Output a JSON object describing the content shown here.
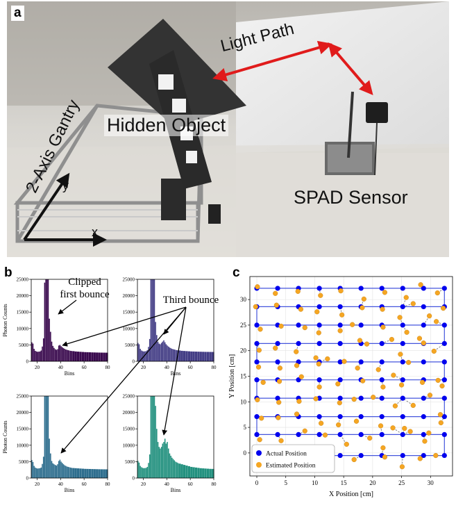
{
  "figure": {
    "panel_a": {
      "letter": "a",
      "labels": {
        "light_path": "Light Path",
        "gantry": "2-Axis Gantry",
        "hidden_object": "Hidden Object",
        "spad_sensor": "SPAD Sensor",
        "axis_x": "x",
        "axis_y": "y"
      }
    },
    "panel_b": {
      "letter": "b",
      "annotations": {
        "clipped_line1": "Clipped",
        "clipped_line2": "first bounce",
        "third_bounce": "Third bounce"
      },
      "colors": [
        "#3a0a4e",
        "#433d85",
        "#2e6e8e",
        "#23917f"
      ]
    },
    "panel_c": {
      "letter": "c",
      "legend": {
        "actual": "Actual Position",
        "estimated": "Estimated Position"
      },
      "colors": {
        "actual": "#0000ee",
        "estimated": "#f5a623",
        "path": "#4455dd"
      }
    }
  },
  "chart_data": [
    {
      "type": "bar",
      "panel": "b",
      "subplot": 1,
      "xlabel": "Bins",
      "ylabel": "Photon Counts",
      "xlim": [
        15,
        80
      ],
      "ylim": [
        0,
        25000
      ],
      "xticks": [
        20,
        40,
        60,
        80
      ],
      "yticks": [
        0,
        5000,
        10000,
        15000,
        20000,
        25000
      ],
      "bins": [
        15,
        16,
        17,
        18,
        19,
        20,
        21,
        22,
        23,
        24,
        25,
        26,
        27,
        28,
        29,
        30,
        31,
        32,
        33,
        34,
        35,
        36,
        37,
        38,
        39,
        40,
        41,
        42,
        43,
        44,
        45,
        46,
        47,
        48,
        49,
        50,
        52,
        54,
        56,
        58,
        60,
        62,
        64,
        66,
        68,
        70,
        72,
        74,
        76,
        78,
        80
      ],
      "values": [
        5800,
        5400,
        3800,
        3200,
        3000,
        2900,
        2950,
        3000,
        3300,
        4500,
        7000,
        24000,
        25000,
        25000,
        25000,
        13000,
        9000,
        6000,
        4700,
        4100,
        3700,
        3500,
        3700,
        4800,
        5000,
        4600,
        4300,
        4000,
        3800,
        3600,
        3500,
        3400,
        3300,
        3200,
        3150,
        3100,
        3000,
        2950,
        2900,
        2850,
        2800,
        2780,
        2750,
        2720,
        2700,
        2680,
        2660,
        2650,
        2640,
        2630,
        2620
      ]
    },
    {
      "type": "bar",
      "panel": "b",
      "subplot": 2,
      "xlabel": "Bins",
      "ylabel": "",
      "xlim": [
        15,
        80
      ],
      "ylim": [
        0,
        25000
      ],
      "xticks": [
        20,
        40,
        60,
        80
      ],
      "yticks": [
        0,
        5000,
        10000,
        15000,
        20000,
        25000
      ],
      "bins": [
        15,
        16,
        17,
        18,
        19,
        20,
        21,
        22,
        23,
        24,
        25,
        26,
        27,
        28,
        29,
        30,
        31,
        32,
        33,
        34,
        35,
        36,
        37,
        38,
        39,
        40,
        41,
        42,
        43,
        44,
        45,
        46,
        47,
        48,
        49,
        50,
        52,
        54,
        56,
        58,
        60,
        62,
        64,
        66,
        68,
        70,
        72,
        74,
        76,
        78,
        80
      ],
      "values": [
        5600,
        5200,
        3800,
        3300,
        3100,
        3000,
        3050,
        3100,
        3400,
        4400,
        6800,
        25000,
        25000,
        25000,
        25000,
        12000,
        8000,
        6000,
        5400,
        5200,
        5600,
        6000,
        6400,
        5800,
        5200,
        4800,
        4500,
        4200,
        4000,
        3800,
        3700,
        3600,
        3500,
        3400,
        3350,
        3300,
        3200,
        3150,
        3100,
        3050,
        3000,
        2980,
        2960,
        2940,
        2920,
        2900,
        2880,
        2870,
        2860,
        2850,
        2840
      ]
    },
    {
      "type": "bar",
      "panel": "b",
      "subplot": 3,
      "xlabel": "Bins",
      "ylabel": "Photon Counts",
      "xlim": [
        15,
        80
      ],
      "ylim": [
        0,
        25000
      ],
      "xticks": [
        20,
        40,
        60,
        80
      ],
      "yticks": [
        0,
        5000,
        10000,
        15000,
        20000,
        25000
      ],
      "bins": [
        15,
        16,
        17,
        18,
        19,
        20,
        21,
        22,
        23,
        24,
        25,
        26,
        27,
        28,
        29,
        30,
        31,
        32,
        33,
        34,
        35,
        36,
        37,
        38,
        39,
        40,
        41,
        42,
        43,
        44,
        45,
        46,
        47,
        48,
        49,
        50,
        52,
        54,
        56,
        58,
        60,
        62,
        64,
        66,
        68,
        70,
        72,
        74,
        76,
        78,
        80
      ],
      "values": [
        5500,
        4900,
        3700,
        3200,
        3000,
        2900,
        2950,
        3000,
        3200,
        4300,
        6500,
        25000,
        25000,
        25000,
        25000,
        12000,
        7500,
        5200,
        4500,
        4200,
        4000,
        3800,
        4200,
        5200,
        5600,
        5000,
        4600,
        4200,
        3900,
        3700,
        3500,
        3400,
        3300,
        3200,
        3100,
        3050,
        3000,
        2950,
        2900,
        2850,
        2800,
        2780,
        2760,
        2740,
        2720,
        2700,
        2680,
        2670,
        2660,
        2650,
        2640
      ]
    },
    {
      "type": "bar",
      "panel": "b",
      "subplot": 4,
      "xlabel": "Bins",
      "ylabel": "",
      "xlim": [
        15,
        80
      ],
      "ylim": [
        0,
        25000
      ],
      "xticks": [
        20,
        40,
        60,
        80
      ],
      "yticks": [
        0,
        5000,
        10000,
        15000,
        20000,
        25000
      ],
      "bins": [
        15,
        16,
        17,
        18,
        19,
        20,
        21,
        22,
        23,
        24,
        25,
        26,
        27,
        28,
        29,
        30,
        31,
        32,
        33,
        34,
        35,
        36,
        37,
        38,
        39,
        40,
        41,
        42,
        43,
        44,
        45,
        46,
        47,
        48,
        49,
        50,
        52,
        54,
        56,
        58,
        60,
        62,
        64,
        66,
        68,
        70,
        72,
        74,
        76,
        78,
        80
      ],
      "values": [
        5200,
        4700,
        3700,
        3300,
        3100,
        3000,
        3050,
        3100,
        3400,
        4600,
        7200,
        25000,
        25000,
        25000,
        25000,
        22000,
        15000,
        11000,
        9500,
        9000,
        9500,
        10500,
        11000,
        12000,
        10500,
        11000,
        9000,
        7500,
        6800,
        6200,
        5800,
        5400,
        5000,
        4800,
        4600,
        4400,
        4200,
        4000,
        3800,
        3600,
        3400,
        3300,
        3200,
        3100,
        3000,
        2950,
        2900,
        2850,
        2800,
        2780,
        2760
      ]
    },
    {
      "type": "scatter",
      "panel": "c",
      "xlabel": "X Position [cm]",
      "ylabel": "Y Position [cm]",
      "xlim": [
        -1.2,
        33.8
      ],
      "ylim": [
        -4.5,
        34.5
      ],
      "xticks": [
        0,
        5,
        10,
        15,
        20,
        25,
        30
      ],
      "yticks": [
        0,
        5,
        10,
        15,
        20,
        25,
        30
      ],
      "grid": true,
      "legend_position": "bottom-left",
      "actual": {
        "x": [
          0,
          3.6,
          7.2,
          10.8,
          14.4,
          18,
          21.6,
          25.2,
          28.8,
          32.4
        ],
        "y": [
          -0.5,
          3.6,
          7.1,
          10.7,
          14.3,
          17.8,
          21.4,
          25,
          28.6,
          32.2
        ]
      },
      "estimated": {
        "x": [
          6.8,
          10.3,
          12.4,
          16.8,
          22.1,
          25.1,
          28.2,
          30.9,
          0.5,
          4.2,
          8.3,
          11.8,
          15.5,
          19.5,
          21.8,
          25.5,
          29.0,
          31.8,
          0.8,
          3.7,
          6.9,
          11.1,
          14.1,
          17.2,
          21.4,
          23.5,
          26.5,
          29.7,
          31.7,
          0.1,
          3.8,
          7.3,
          10.2,
          14.3,
          16.8,
          20.1,
          23.9,
          27.0,
          29.9,
          32.0,
          1.1,
          3.9,
          7.7,
          10.8,
          14.0,
          18.3,
          21.8,
          25.0,
          28.6,
          31.3,
          0.3,
          4.0,
          6.9,
          10.7,
          15.1,
          17.4,
          21.0,
          23.6,
          26.2,
          30.6,
          0.4,
          3.2,
          6.8,
          10.2,
          12.2,
          17.8,
          19.0,
          23.3,
          24.8,
          28.8,
          0.6,
          4.2,
          8.3,
          10.7,
          14.4,
          16.5,
          21.8,
          25.9,
          28.1,
          31.0,
          -0.2,
          3.4,
          7.6,
          10.4,
          14.7,
          18.2,
          21.7,
          24.7,
          27.0,
          29.8,
          32.2,
          0.1,
          3.2,
          7.1,
          11.0,
          14.5,
          18.5,
          22.1,
          25.8,
          28.3,
          31.2
        ],
        "y": [
          -0.8,
          -0.7,
          0.6,
          -1.3,
          -0.8,
          -2.7,
          -1.1,
          -0.5,
          2.6,
          2.4,
          4.3,
          3.5,
          1.7,
          2.9,
          1.0,
          4.8,
          2.3,
          5.9,
          6.8,
          6.9,
          7.6,
          5.8,
          5.5,
          6.2,
          5.3,
          4.9,
          4.2,
          3.9,
          7.5,
          10.4,
          9.9,
          10.1,
          10.6,
          9.8,
          10.5,
          10.9,
          9.2,
          9.3,
          11.3,
          13.1,
          13.8,
          14.0,
          14.9,
          12.9,
          13.5,
          14.1,
          12.9,
          13.3,
          13.8,
          14.2,
          16.8,
          16.6,
          17.1,
          17.4,
          17.9,
          16.6,
          16.3,
          15.2,
          17.7,
          19.9,
          20.1,
          20.5,
          19.8,
          18.6,
          18.4,
          22.0,
          21.3,
          22.2,
          19.3,
          21.5,
          24.2,
          24.8,
          24.5,
          23.5,
          23.9,
          25.1,
          24.6,
          23.6,
          22.4,
          25.7,
          28.6,
          28.9,
          28.1,
          27.6,
          27.0,
          28.4,
          28.1,
          26.5,
          29.2,
          26.8,
          28.3,
          32.5,
          31.2,
          31.6,
          30.8,
          31.7,
          30.1,
          31.4,
          30.4,
          32.9,
          31.3
        ]
      }
    }
  ]
}
